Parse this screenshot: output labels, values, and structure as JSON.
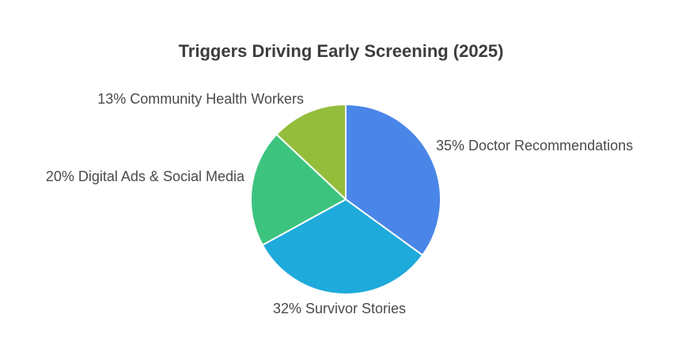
{
  "chart_data": {
    "type": "pie",
    "title": "Triggers Driving Early Screening (2025)",
    "slices": [
      {
        "label": "Doctor Recommendations",
        "value": 35,
        "color": "#4a86e8",
        "display": "35% Doctor Recommendations"
      },
      {
        "label": "Survivor Stories",
        "value": 32,
        "color": "#1eaadb",
        "display": "32% Survivor Stories"
      },
      {
        "label": "Digital Ads & Social Media",
        "value": 20,
        "color": "#3cc47f",
        "display": "20% Digital Ads & Social Media"
      },
      {
        "label": "Community Health Workers",
        "value": 13,
        "color": "#93bd3b",
        "display": "13% Community Health Workers"
      }
    ],
    "start": "12 o'clock",
    "direction": "clockwise",
    "legend": "none"
  }
}
